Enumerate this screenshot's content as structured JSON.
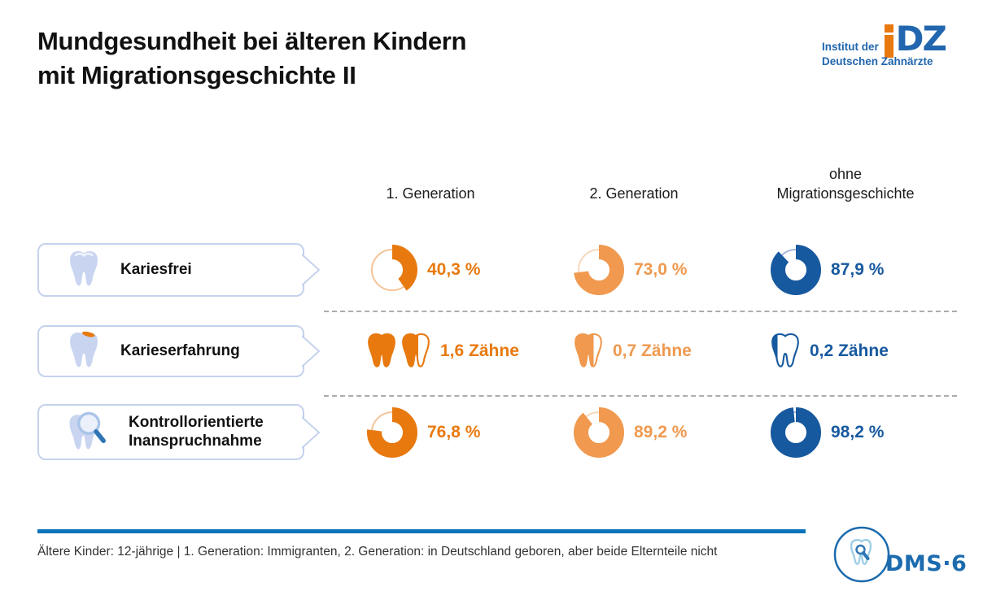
{
  "title": {
    "line1": "Mundgesundheit bei älteren Kindern",
    "line2": "mit Migrationsgeschichte II"
  },
  "idz_logo": {
    "line1": "Institut der",
    "line2": "Deutschen Zahnärzte",
    "mark_letters": "DZ"
  },
  "colors": {
    "orange": "#E8790F",
    "orange_track": "#F4C497",
    "light_orange": "#F0994F",
    "light_orange_track": "#F8D9BB",
    "blue": "#17599F",
    "blue_track": "#A9B7DD",
    "rule_blue": "#0D74BA",
    "box_border": "#C5D2ED",
    "tooth_fill": "#C9D5F0"
  },
  "columns": [
    {
      "label": "1. Generation",
      "color_key": "orange"
    },
    {
      "label": "2. Generation",
      "color_key": "light_orange"
    },
    {
      "label": "ohne\nMigrationsgeschichte",
      "color_key": "blue"
    }
  ],
  "rows": [
    {
      "label": "Kariesfrei",
      "kind": "donut",
      "cells": [
        {
          "value": 40.3,
          "display": "40,3 %"
        },
        {
          "value": 73.0,
          "display": "73,0 %"
        },
        {
          "value": 87.9,
          "display": "87,9 %"
        }
      ]
    },
    {
      "label": "Karieserfahrung",
      "kind": "teeth",
      "cells": [
        {
          "value": 1.6,
          "display": "1,6 Zähne"
        },
        {
          "value": 0.7,
          "display": "0,7 Zähne"
        },
        {
          "value": 0.2,
          "display": "0,2 Zähne"
        }
      ]
    },
    {
      "label": "Kontrollorientierte\nInanspruchnahme",
      "kind": "donut",
      "cells": [
        {
          "value": 76.8,
          "display": "76,8 %"
        },
        {
          "value": 89.2,
          "display": "89,2 %"
        },
        {
          "value": 98.2,
          "display": "98,2 %"
        }
      ]
    }
  ],
  "footer": {
    "note": "Ältere Kinder: 12-jährige | 1. Generation: Immigranten, 2. Generation: in Deutschland geboren, aber beide Elternteile nicht",
    "dms_label": "DMS·6"
  },
  "chart_data": {
    "type": "table",
    "title": "Mundgesundheit bei älteren Kindern mit Migrationsgeschichte II",
    "groups": [
      "1. Generation",
      "2. Generation",
      "ohne Migrationsgeschichte"
    ],
    "metrics": [
      {
        "name": "Kariesfrei",
        "unit": "%",
        "chart": "donut",
        "values": [
          40.3,
          73.0,
          87.9
        ]
      },
      {
        "name": "Karieserfahrung",
        "unit": "Zähne",
        "chart": "pictogram",
        "values": [
          1.6,
          0.7,
          0.2
        ]
      },
      {
        "name": "Kontrollorientierte Inanspruchnahme",
        "unit": "%",
        "chart": "donut",
        "values": [
          76.8,
          89.2,
          98.2
        ]
      }
    ],
    "series_colors": [
      "#E8790F",
      "#F0994F",
      "#17599F"
    ],
    "footnote": "Ältere Kinder: 12-jährige | 1. Generation: Immigranten, 2. Generation: in Deutschland geboren, aber beide Elternteile nicht"
  }
}
